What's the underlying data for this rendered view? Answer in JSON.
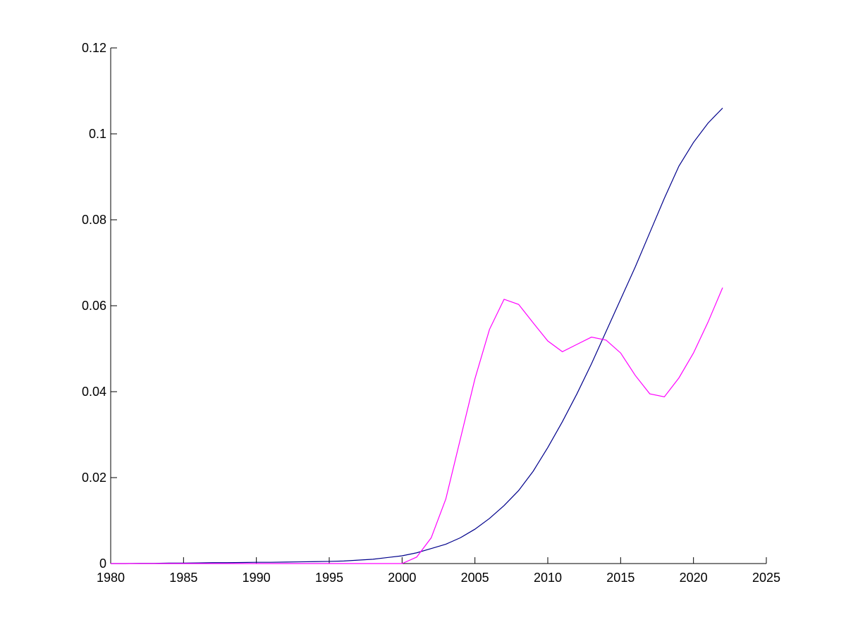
{
  "chart_data": {
    "type": "line",
    "x": [
      1980,
      1981,
      1982,
      1983,
      1984,
      1985,
      1986,
      1987,
      1988,
      1989,
      1990,
      1991,
      1992,
      1993,
      1994,
      1995,
      1996,
      1997,
      1998,
      1999,
      2000,
      2001,
      2002,
      2003,
      2004,
      2005,
      2006,
      2007,
      2008,
      2009,
      2010,
      2011,
      2012,
      2013,
      2014,
      2015,
      2016,
      2017,
      2018,
      2019,
      2020,
      2021,
      2022
    ],
    "series": [
      {
        "color": "#00008b",
        "values": [
          0,
          0,
          5e-05,
          5e-05,
          0.0001,
          0.0001,
          0.00015,
          0.0002,
          0.0002,
          0.00025,
          0.0003,
          0.0003,
          0.00035,
          0.0004,
          0.00045,
          0.0005,
          0.0006,
          0.0008,
          0.001,
          0.0014,
          0.0018,
          0.0025,
          0.0035,
          0.0045,
          0.006,
          0.008,
          0.0105,
          0.0135,
          0.017,
          0.0215,
          0.027,
          0.033,
          0.0395,
          0.0465,
          0.054,
          0.0615,
          0.069,
          0.077,
          0.085,
          0.0925,
          0.098,
          0.1025,
          0.106
        ]
      },
      {
        "color": "#ff00ff",
        "values": [
          0,
          0,
          0,
          0,
          0,
          0,
          0,
          0,
          0,
          0,
          0,
          0,
          0,
          0,
          0,
          0,
          0,
          0,
          0,
          0,
          0,
          0.0015,
          0.006,
          0.015,
          0.029,
          0.043,
          0.0545,
          0.0615,
          0.0603,
          0.056,
          0.0518,
          0.0493,
          0.051,
          0.0527,
          0.052,
          0.049,
          0.0438,
          0.0395,
          0.0388,
          0.0432,
          0.049,
          0.0562,
          0.0642
        ]
      }
    ],
    "xlim": [
      1980,
      2025
    ],
    "xticks": [
      1980,
      1985,
      1990,
      1995,
      2000,
      2005,
      2010,
      2015,
      2020,
      2025
    ],
    "ylim": [
      0,
      0.12
    ],
    "yticks": [
      0,
      0.02,
      0.04,
      0.06,
      0.08,
      0.1,
      0.12
    ]
  }
}
